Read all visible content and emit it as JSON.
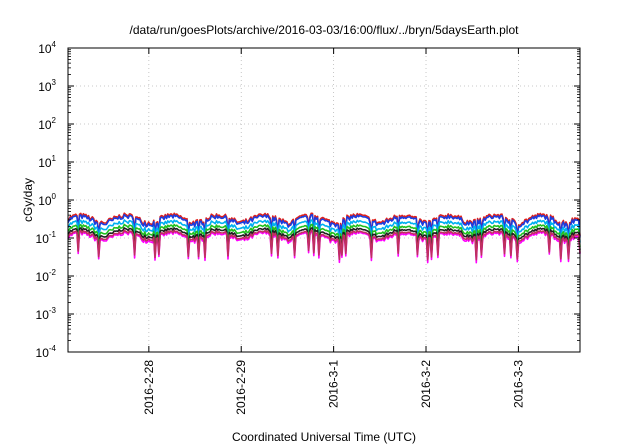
{
  "chart_data": {
    "type": "line",
    "title": "/data/run/goesPlots/archive/2016-03-03/16:00/flux/../bryn/5daysEarth.plot",
    "xlabel": "Coordinated Universal Time (UTC)",
    "ylabel": "cGy/day",
    "yscale": "log",
    "ylim": [
      0.0001,
      10000
    ],
    "xlim": [
      "2016-02-27 03:00",
      "2016-03-03 16:00"
    ],
    "grid": true,
    "legend": "none",
    "x_ticks": [
      "2016-2-28",
      "2016-2-29",
      "2016-3-1",
      "2016-3-2",
      "2016-3-3"
    ],
    "y_ticks": [
      {
        "base": "10",
        "exp": "-4"
      },
      {
        "base": "10",
        "exp": "-3"
      },
      {
        "base": "10",
        "exp": "-2"
      },
      {
        "base": "10",
        "exp": "-1"
      },
      {
        "base": "10",
        "exp": "0"
      },
      {
        "base": "10",
        "exp": "1"
      },
      {
        "base": "10",
        "exp": "2"
      },
      {
        "base": "10",
        "exp": "3"
      },
      {
        "base": "10",
        "exp": "4"
      }
    ],
    "series": [
      {
        "color": "#e0201a",
        "level": 0.33,
        "spread": 0.1,
        "dip": 0.45
      },
      {
        "color": "#1a3de0",
        "level": 0.3,
        "spread": 0.1,
        "dip": 0.45
      },
      {
        "color": "#00b0f0",
        "level": 0.22,
        "spread": 0.09,
        "dip": 0.45
      },
      {
        "color": "#20c020",
        "level": 0.17,
        "spread": 0.08,
        "dip": 0.4
      },
      {
        "color": "#ff00ff",
        "level": 0.11,
        "spread": 0.09,
        "dip": 0.28
      },
      {
        "color": "#202020",
        "level": 0.14,
        "spread": 0.07,
        "dip": 0.3
      },
      {
        "color": "#c03060",
        "level": 0.12,
        "spread": 0.07,
        "dip": 0.3
      }
    ]
  }
}
